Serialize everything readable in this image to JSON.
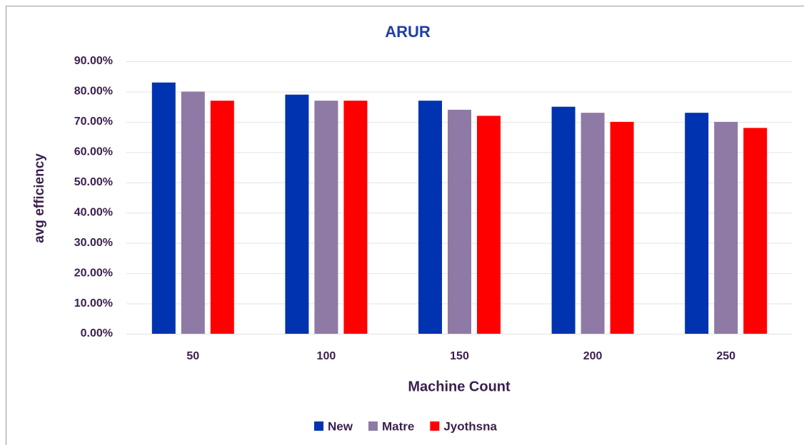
{
  "chart_data": {
    "type": "bar",
    "title": "ARUR",
    "x_label": "Machine Count",
    "y_label": "avg efficiency",
    "categories": [
      "50",
      "100",
      "150",
      "200",
      "250"
    ],
    "series": [
      {
        "name": "New",
        "color": "#0033b0",
        "values": [
          83,
          79,
          77,
          75,
          73
        ]
      },
      {
        "name": "Matre",
        "color": "#8e7aa5",
        "values": [
          80,
          77,
          74,
          73,
          70
        ]
      },
      {
        "name": "Jyothsna",
        "color": "#ff0000",
        "values": [
          77,
          77,
          72,
          70,
          68
        ]
      }
    ],
    "ylim": [
      0,
      90
    ],
    "yticks": [
      {
        "value": 0,
        "label": "0.00%"
      },
      {
        "value": 10,
        "label": "10.00%"
      },
      {
        "value": 20,
        "label": "20.00%"
      },
      {
        "value": 30,
        "label": "30.00%"
      },
      {
        "value": 40,
        "label": "40.00%"
      },
      {
        "value": 50,
        "label": "50.00%"
      },
      {
        "value": 60,
        "label": "60.00%"
      },
      {
        "value": 70,
        "label": "70.00%"
      },
      {
        "value": 80,
        "label": "80.00%"
      },
      {
        "value": 90,
        "label": "90.00%"
      }
    ],
    "grid": true,
    "legend": "bottom"
  }
}
